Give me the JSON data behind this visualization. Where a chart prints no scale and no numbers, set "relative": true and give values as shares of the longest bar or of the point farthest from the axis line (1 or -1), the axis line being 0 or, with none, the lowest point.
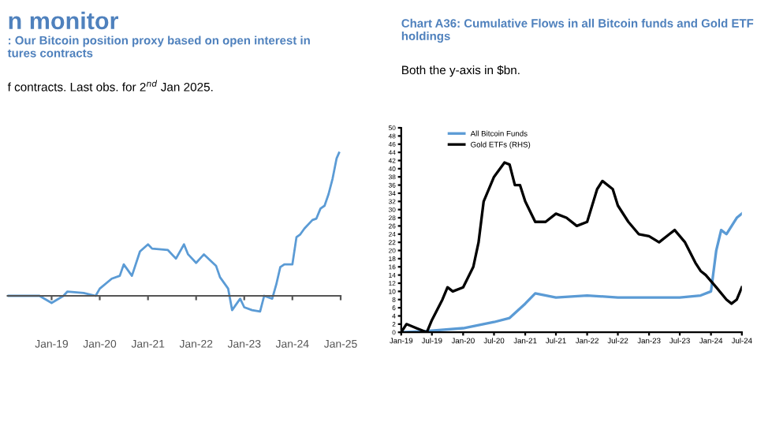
{
  "chart_data": [
    {
      "type": "line",
      "title": ": Our Bitcoin position proxy based on open interest in\ntures contracts",
      "subtitle": "f contracts. Last obs. for 2$^{nd}$ Jan 2025.",
      "annotations": [
        "n monitor"
      ],
      "relative": true,
      "x": [
        "2018-02",
        "2018-10",
        "2019-01",
        "2019-04",
        "2019-05",
        "2019-09",
        "2019-12",
        "2020-01",
        "2020-04",
        "2020-06",
        "2020-07",
        "2020-09",
        "2020-11",
        "2021-01",
        "2021-02",
        "2021-06",
        "2021-08",
        "2021-10",
        "2021-11",
        "2022-01",
        "2022-03",
        "2022-06",
        "2022-07",
        "2022-09",
        "2022-10",
        "2022-12",
        "2023-01",
        "2023-03",
        "2023-05",
        "2023-06",
        "2023-08",
        "2023-09",
        "2023-10",
        "2023-11",
        "2024-01",
        "2024-02",
        "2024-03",
        "2024-04",
        "2024-06",
        "2024-07",
        "2024-08",
        "2024-09",
        "2024-10",
        "2024-11",
        "2024-12",
        "2024-12-20"
      ],
      "series": [
        {
          "color": "#5b9bd5",
          "values": [
            0,
            0,
            -0.05,
            0,
            0.03,
            0.02,
            0,
            0.05,
            0.12,
            0.14,
            0.22,
            0.14,
            0.31,
            0.36,
            0.33,
            0.32,
            0.26,
            0.36,
            0.29,
            0.23,
            0.29,
            0.21,
            0.13,
            0.05,
            -0.1,
            -0.02,
            -0.08,
            -0.1,
            -0.11,
            0,
            -0.02,
            0.08,
            0.2,
            0.22,
            0.22,
            0.41,
            0.43,
            0.47,
            0.53,
            0.54,
            0.61,
            0.63,
            0.71,
            0.82,
            0.96,
            1
          ]
        }
      ],
      "xlim": [
        "2018-02",
        "2025-01"
      ],
      "xticks": [
        {
          "value": "2019-01",
          "label": "Jan-19"
        },
        {
          "value": "2020-01",
          "label": "Jan-20"
        },
        {
          "value": "2021-01",
          "label": "Jan-21"
        },
        {
          "value": "2022-01",
          "label": "Jan-22"
        },
        {
          "value": "2023-01",
          "label": "Jan-23"
        },
        {
          "value": "2024-01",
          "label": "Jan-24"
        },
        {
          "value": "2025-01",
          "label": "Jan-25"
        }
      ],
      "grid": false,
      "legend": false
    },
    {
      "type": "line",
      "title": "Chart A36: Cumulative Flows in all Bitcoin funds and Gold ETF\nholdings",
      "subtitle": "Both the y-axis in $bn.",
      "legend": "top left",
      "grid": false,
      "series": [
        {
          "name": "All Bitcoin Funds",
          "color": "#5b9bd5",
          "x": [
            "2019-01",
            "2019-06",
            "2020-01",
            "2020-07",
            "2020-10",
            "2021-01",
            "2021-03",
            "2021-07",
            "2022-01",
            "2022-07",
            "2023-01",
            "2023-07",
            "2023-11",
            "2024-01",
            "2024-02",
            "2024-03",
            "2024-04",
            "2024-06",
            "2024-07"
          ],
          "values": [
            0,
            0.3,
            1,
            2.5,
            3.5,
            7,
            9.5,
            8.5,
            9,
            8.5,
            8.5,
            8.5,
            9,
            10,
            20,
            25,
            24,
            28,
            29
          ]
        },
        {
          "name": "Gold ETFs (RHS)",
          "color": "#000000",
          "x": [
            "2019-01",
            "2019-02",
            "2019-04",
            "2019-06",
            "2019-07",
            "2019-09",
            "2019-10",
            "2019-11",
            "2020-01",
            "2020-03",
            "2020-04",
            "2020-05",
            "2020-07",
            "2020-09",
            "2020-10",
            "2020-11",
            "2020-12",
            "2021-01",
            "2021-03",
            "2021-05",
            "2021-07",
            "2021-09",
            "2021-11",
            "2022-01",
            "2022-03",
            "2022-04",
            "2022-06",
            "2022-07",
            "2022-09",
            "2022-11",
            "2023-01",
            "2023-03",
            "2023-05",
            "2023-06",
            "2023-08",
            "2023-10",
            "2023-11",
            "2023-12",
            "2024-02",
            "2024-04",
            "2024-05",
            "2024-06",
            "2024-07"
          ],
          "values": [
            0,
            2,
            1,
            0,
            3,
            8,
            11,
            10,
            11,
            16,
            22,
            32,
            38,
            41.5,
            41,
            36,
            36,
            32,
            27,
            27,
            29,
            28,
            26,
            27,
            35,
            37,
            35,
            31,
            27,
            24,
            23.5,
            22,
            24,
            25,
            22,
            17,
            15,
            14,
            11,
            8,
            7,
            8,
            11
          ]
        }
      ],
      "xlim": [
        "2019-01",
        "2024-07"
      ],
      "ylim": [
        0,
        50
      ],
      "yticks": [
        0,
        2,
        4,
        6,
        8,
        10,
        12,
        14,
        16,
        18,
        20,
        22,
        24,
        26,
        28,
        30,
        32,
        34,
        36,
        38,
        40,
        42,
        44,
        46,
        48,
        50
      ],
      "xticks": [
        {
          "value": "2019-01",
          "label": "Jan-19"
        },
        {
          "value": "2019-07",
          "label": "Jul-19"
        },
        {
          "value": "2020-01",
          "label": "Jan-20"
        },
        {
          "value": "2020-07",
          "label": "Jul-20"
        },
        {
          "value": "2021-01",
          "label": "Jan-21"
        },
        {
          "value": "2021-07",
          "label": "Jul-21"
        },
        {
          "value": "2022-01",
          "label": "Jan-22"
        },
        {
          "value": "2022-07",
          "label": "Jul-22"
        },
        {
          "value": "2023-01",
          "label": "Jan-23"
        },
        {
          "value": "2023-07",
          "label": "Jul-23"
        },
        {
          "value": "2024-01",
          "label": "Jan-24"
        },
        {
          "value": "2024-07",
          "label": "Jul-24"
        }
      ]
    }
  ]
}
